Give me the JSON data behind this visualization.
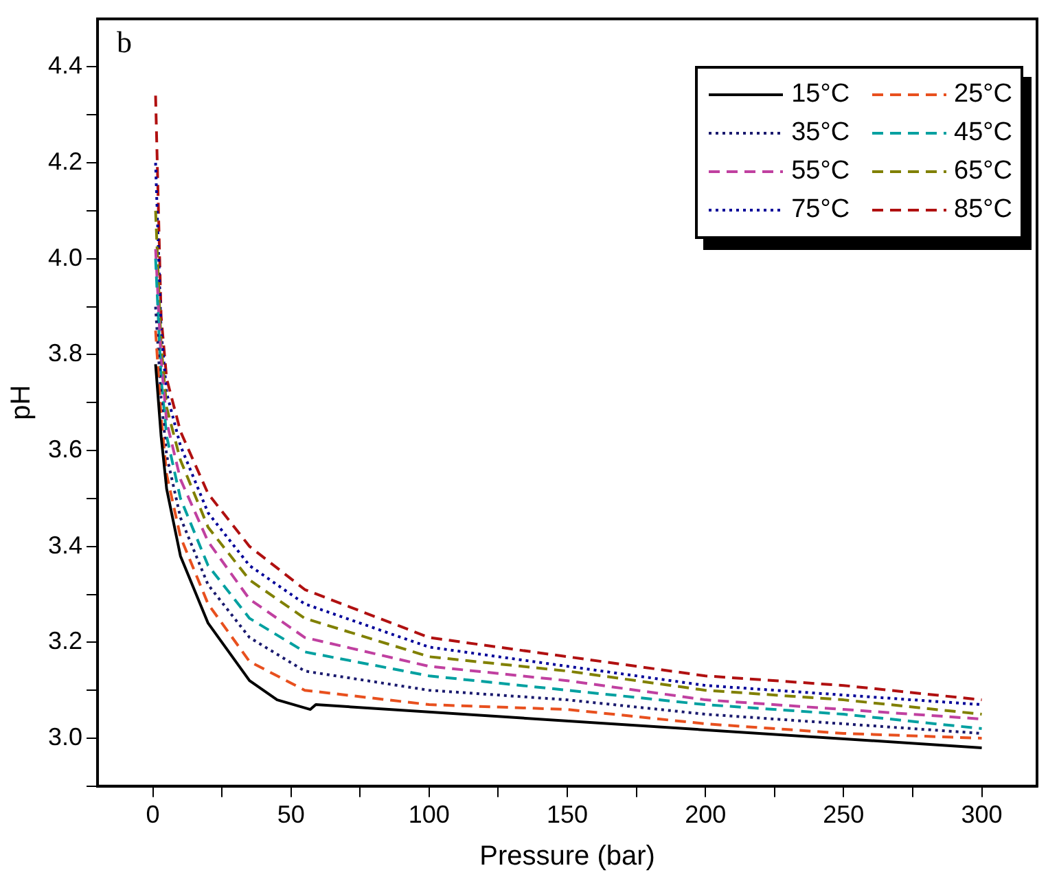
{
  "chart_data": {
    "type": "line",
    "xlabel": "Pressure (bar)",
    "ylabel": "pH",
    "annotations": [
      "b"
    ],
    "xlim": [
      -20,
      320
    ],
    "ylim": [
      2.9,
      4.5
    ],
    "xticks": [
      0,
      {
        "value": 25,
        "label": null
      },
      50,
      {
        "value": 75,
        "label": null
      },
      100,
      {
        "value": 125,
        "label": null
      },
      150,
      {
        "value": 175,
        "label": null
      },
      200,
      {
        "value": 225,
        "label": null
      },
      250,
      {
        "value": 275,
        "label": null
      },
      300
    ],
    "yticks": [
      {
        "value": 2.9,
        "label": null
      },
      {
        "value": 3.0,
        "label": "3.0"
      },
      {
        "value": 3.1,
        "label": null
      },
      {
        "value": 3.2,
        "label": "3.2"
      },
      {
        "value": 3.3,
        "label": null
      },
      {
        "value": 3.4,
        "label": "3.4"
      },
      {
        "value": 3.5,
        "label": null
      },
      {
        "value": 3.6,
        "label": "3.6"
      },
      {
        "value": 3.7,
        "label": null
      },
      {
        "value": 3.8,
        "label": "3.8"
      },
      {
        "value": 3.9,
        "label": null
      },
      {
        "value": 4.0,
        "label": "4.0"
      },
      {
        "value": 4.1,
        "label": null
      },
      {
        "value": 4.2,
        "label": "4.2"
      },
      {
        "value": 4.3,
        "label": null
      },
      {
        "value": 4.4,
        "label": "4.4"
      }
    ],
    "x": [
      1,
      3,
      5,
      10,
      20,
      35,
      55,
      100,
      150,
      200,
      250,
      300
    ],
    "grid": false,
    "legend": "top right",
    "marker": "none",
    "series": [
      {
        "name": "15°C",
        "color": "#000000",
        "line_style": "solid",
        "x": [
          1,
          3,
          5,
          10,
          20,
          35,
          45,
          57,
          59,
          300
        ],
        "values": [
          3.78,
          3.63,
          3.52,
          3.38,
          3.24,
          3.12,
          3.08,
          3.06,
          3.07,
          2.98
        ]
      },
      {
        "name": "25°C",
        "color": "#e8501e",
        "line_style": "dashed",
        "values": [
          3.85,
          3.67,
          3.55,
          3.42,
          3.28,
          3.16,
          3.1,
          3.07,
          3.06,
          3.03,
          3.01,
          3.0
        ]
      },
      {
        "name": "35°C",
        "color": "#1a1a6e",
        "line_style": "dotted",
        "values": [
          3.9,
          3.71,
          3.59,
          3.46,
          3.32,
          3.21,
          3.14,
          3.1,
          3.08,
          3.05,
          3.03,
          3.01
        ]
      },
      {
        "name": "45°C",
        "color": "#00a0a0",
        "line_style": "dashed",
        "values": [
          4.0,
          3.75,
          3.63,
          3.5,
          3.36,
          3.25,
          3.18,
          3.13,
          3.1,
          3.07,
          3.05,
          3.02
        ]
      },
      {
        "name": "55°C",
        "color": "#c040a0",
        "line_style": "dashed",
        "values": [
          4.02,
          3.79,
          3.66,
          3.54,
          3.41,
          3.29,
          3.21,
          3.15,
          3.12,
          3.08,
          3.06,
          3.04
        ]
      },
      {
        "name": "65°C",
        "color": "#808000",
        "line_style": "dashed",
        "values": [
          4.1,
          3.82,
          3.69,
          3.58,
          3.44,
          3.33,
          3.25,
          3.17,
          3.14,
          3.1,
          3.08,
          3.05
        ]
      },
      {
        "name": "75°C",
        "color": "#000099",
        "line_style": "dotted",
        "values": [
          4.2,
          3.85,
          3.72,
          3.61,
          3.47,
          3.36,
          3.28,
          3.19,
          3.15,
          3.11,
          3.09,
          3.07
        ]
      },
      {
        "name": "85°C",
        "color": "#b01010",
        "line_style": "dashed",
        "values": [
          4.34,
          3.88,
          3.75,
          3.64,
          3.51,
          3.4,
          3.31,
          3.21,
          3.17,
          3.13,
          3.11,
          3.08
        ]
      }
    ]
  }
}
